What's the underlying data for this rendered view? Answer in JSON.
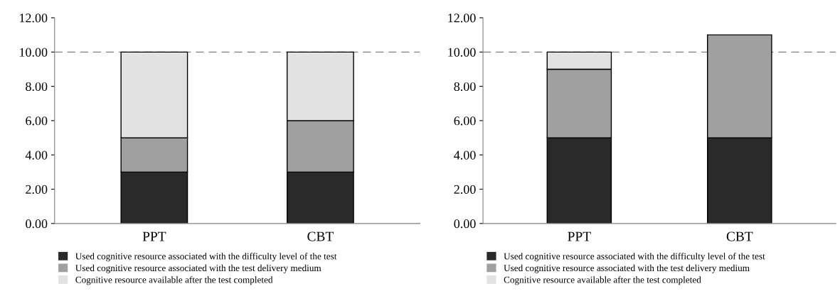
{
  "chart_data": [
    {
      "type": "bar",
      "stacked": true,
      "categories": [
        "PPT",
        "CBT"
      ],
      "ylim": [
        0,
        12
      ],
      "yticks": [
        {
          "value": 0,
          "label": "0.00"
        },
        {
          "value": 2,
          "label": "2.00"
        },
        {
          "value": 4,
          "label": "4.00"
        },
        {
          "value": 6,
          "label": "6.00"
        },
        {
          "value": 8,
          "label": "8.00"
        },
        {
          "value": 10,
          "label": "10.00"
        },
        {
          "value": 12,
          "label": "12.00"
        }
      ],
      "series": [
        {
          "name": "Used cognitive resource associated with the difficulty level of the test",
          "color": "#2a2a2a",
          "values": [
            3,
            3
          ]
        },
        {
          "name": "Used cognitive resource associated with the test delivery medium",
          "color": "#a0a0a0",
          "values": [
            2,
            3
          ]
        },
        {
          "name": "Cognitive resource available after the test completed",
          "color": "#e2e2e2",
          "values": [
            5,
            4
          ]
        }
      ],
      "ref_lines": [
        {
          "axis": "y",
          "value": 10,
          "color": "#808080",
          "line_style": "dashed"
        }
      ],
      "legend": "bottom",
      "grid": false
    },
    {
      "type": "bar",
      "stacked": true,
      "categories": [
        "PPT",
        "CBT"
      ],
      "ylim": [
        0,
        12
      ],
      "yticks": [
        {
          "value": 0,
          "label": "0.00"
        },
        {
          "value": 2,
          "label": "2.00"
        },
        {
          "value": 4,
          "label": "4.00"
        },
        {
          "value": 6,
          "label": "6.00"
        },
        {
          "value": 8,
          "label": "8.00"
        },
        {
          "value": 10,
          "label": "10.00"
        },
        {
          "value": 12,
          "label": "12.00"
        }
      ],
      "series": [
        {
          "name": "Used cognitive resource associated with the difficulty level of the test",
          "color": "#2a2a2a",
          "values": [
            5,
            5
          ]
        },
        {
          "name": "Used cognitive resource associated with the test delivery medium",
          "color": "#a0a0a0",
          "values": [
            4,
            6
          ]
        },
        {
          "name": "Cognitive resource available after the test completed",
          "color": "#e2e2e2",
          "values": [
            1,
            0
          ]
        }
      ],
      "ref_lines": [
        {
          "axis": "y",
          "value": 10,
          "color": "#808080",
          "line_style": "dashed"
        }
      ],
      "legend": "bottom",
      "grid": false
    }
  ]
}
